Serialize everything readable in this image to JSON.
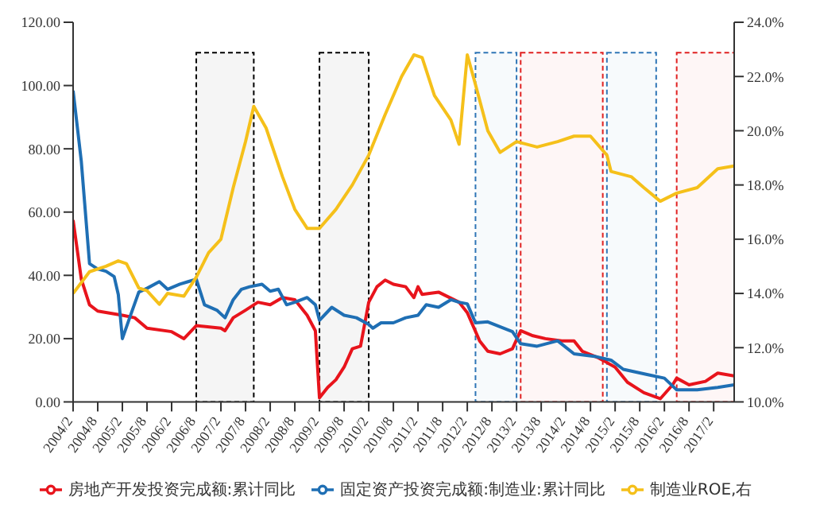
{
  "chart_data": {
    "type": "line",
    "legend": "bottom",
    "marker": "none",
    "line_style": "solid",
    "xlim": [
      "2004-02",
      "2017-07"
    ],
    "xticks": [
      {
        "value": "2004-02",
        "label": "2004/2"
      },
      {
        "value": "2004-08",
        "label": "2004/8"
      },
      {
        "value": "2005-02",
        "label": "2005/2"
      },
      {
        "value": "2005-08",
        "label": "2005/8"
      },
      {
        "value": "2006-02",
        "label": "2006/2"
      },
      {
        "value": "2006-08",
        "label": "2006/8"
      },
      {
        "value": "2007-02",
        "label": "2007/2"
      },
      {
        "value": "2007-08",
        "label": "2007/8"
      },
      {
        "value": "2008-02",
        "label": "2008/2"
      },
      {
        "value": "2008-08",
        "label": "2008/8"
      },
      {
        "value": "2009-02",
        "label": "2009/2"
      },
      {
        "value": "2009-08",
        "label": "2009/8"
      },
      {
        "value": "2010-02",
        "label": "2010/2"
      },
      {
        "value": "2010-08",
        "label": "2010/8"
      },
      {
        "value": "2011-02",
        "label": "2011/2"
      },
      {
        "value": "2011-08",
        "label": "2011/8"
      },
      {
        "value": "2012-02",
        "label": "2012/2"
      },
      {
        "value": "2012-08",
        "label": "2012/8"
      },
      {
        "value": "2013-02",
        "label": "2013/2"
      },
      {
        "value": "2013-08",
        "label": "2013/8"
      },
      {
        "value": "2014-02",
        "label": "2014/2"
      },
      {
        "value": "2014-08",
        "label": "2014/8"
      },
      {
        "value": "2015-02",
        "label": "2015/2"
      },
      {
        "value": "2015-08",
        "label": "2015/8"
      },
      {
        "value": "2016-02",
        "label": "2016/2"
      },
      {
        "value": "2016-08",
        "label": "2016/8"
      },
      {
        "value": "2017-02",
        "label": "2017/2"
      }
    ],
    "ylim": [
      0,
      120
    ],
    "yticks": [
      {
        "value": 0,
        "label": "0.00"
      },
      {
        "value": 20,
        "label": "20.00"
      },
      {
        "value": 40,
        "label": "40.00"
      },
      {
        "value": 60,
        "label": "60.00"
      },
      {
        "value": 80,
        "label": "80.00"
      },
      {
        "value": 100,
        "label": "100.00"
      },
      {
        "value": 120,
        "label": "120.00"
      }
    ],
    "y2lim": [
      10,
      24
    ],
    "y2ticks": [
      {
        "value": 10,
        "label": "10.0%"
      },
      {
        "value": 12,
        "label": "12.0%"
      },
      {
        "value": 14,
        "label": "14.0%"
      },
      {
        "value": 16,
        "label": "16.0%"
      },
      {
        "value": 18,
        "label": "18.0%"
      },
      {
        "value": 20,
        "label": "20.0%"
      },
      {
        "value": 22,
        "label": "22.0%"
      },
      {
        "value": 24,
        "label": "24.0%"
      }
    ],
    "bands": [
      {
        "axis": "x",
        "from": "2006-08",
        "to": "2007-10",
        "color": "#000000"
      },
      {
        "axis": "x",
        "from": "2009-02",
        "to": "2010-02",
        "color": "#000000"
      },
      {
        "axis": "x",
        "from": "2012-04",
        "to": "2013-02",
        "color": "#2e75b6"
      },
      {
        "axis": "x",
        "from": "2013-03",
        "to": "2014-11",
        "color": "#e02020"
      },
      {
        "axis": "x",
        "from": "2014-12",
        "to": "2015-12",
        "color": "#2e75b6"
      },
      {
        "axis": "x",
        "from": "2016-05",
        "to": "2017-07",
        "color": "#e02020"
      }
    ],
    "series": [
      {
        "name": "房地产开发投资完成额:累计同比",
        "color": "#e8141c",
        "x": [
          "2004-02",
          "2004-04",
          "2004-06",
          "2004-08",
          "2005-02",
          "2005-05",
          "2005-08",
          "2006-02",
          "2006-05",
          "2006-08",
          "2007-02",
          "2007-03",
          "2007-05",
          "2007-08",
          "2007-11",
          "2008-02",
          "2008-05",
          "2008-08",
          "2008-11",
          "2009-01",
          "2009-02",
          "2009-04",
          "2009-06",
          "2009-08",
          "2009-10",
          "2009-12",
          "2010-02",
          "2010-04",
          "2010-06",
          "2010-08",
          "2010-11",
          "2011-01",
          "2011-02",
          "2011-03",
          "2011-07",
          "2011-12",
          "2012-02",
          "2012-05",
          "2012-07",
          "2012-10",
          "2013-01",
          "2013-03",
          "2013-06",
          "2013-09",
          "2014-01",
          "2014-04",
          "2014-06",
          "2014-10",
          "2015-02",
          "2015-05",
          "2015-09",
          "2016-01",
          "2016-04",
          "2016-05",
          "2016-08",
          "2016-12",
          "2017-03",
          "2017-07"
        ],
        "values": [
          57.5,
          38.8,
          30.7,
          28.7,
          27.4,
          26.6,
          23.3,
          22.2,
          20,
          24.1,
          23.3,
          22.5,
          26.6,
          29,
          31.5,
          30.7,
          33,
          32.3,
          27.4,
          22.5,
          1.3,
          4.6,
          7,
          11,
          16.8,
          17.6,
          31.5,
          36.4,
          38.5,
          37.2,
          36.4,
          33,
          36.4,
          34,
          34.7,
          31.5,
          28.2,
          19.3,
          16,
          15.2,
          16.8,
          22.5,
          20.9,
          20,
          19.3,
          19.3,
          16,
          13.9,
          11,
          6.2,
          2.9,
          1,
          5.4,
          7.5,
          5.4,
          6.5,
          9.1,
          8.2
        ]
      },
      {
        "name": "固定资产投资完成额:制造业:累计同比",
        "color": "#1f6fb4",
        "x": [
          "2004-02",
          "2004-04",
          "2004-06",
          "2004-08",
          "2004-10",
          "2004-12",
          "2005-01",
          "2005-02",
          "2005-04",
          "2005-06",
          "2005-08",
          "2005-11",
          "2006-01",
          "2006-04",
          "2006-06",
          "2006-08",
          "2006-10",
          "2007-01",
          "2007-03",
          "2007-05",
          "2007-07",
          "2007-09",
          "2007-12",
          "2008-02",
          "2008-04",
          "2008-06",
          "2008-08",
          "2008-11",
          "2009-01",
          "2009-02",
          "2009-05",
          "2009-08",
          "2009-11",
          "2010-02",
          "2010-03",
          "2010-05",
          "2010-08",
          "2010-11",
          "2011-02",
          "2011-04",
          "2011-07",
          "2011-10",
          "2011-12",
          "2012-02",
          "2012-04",
          "2012-07",
          "2013-01",
          "2013-03",
          "2013-07",
          "2013-12",
          "2014-04",
          "2014-09",
          "2015-01",
          "2015-04",
          "2015-10",
          "2016-02",
          "2016-05",
          "2016-10",
          "2017-03",
          "2017-07"
        ],
        "values": [
          98.4,
          76,
          43.7,
          42,
          41.3,
          39.6,
          34,
          20,
          27.4,
          34.7,
          35.9,
          38,
          35.6,
          37.2,
          38,
          38.8,
          30.7,
          29,
          26.6,
          32.3,
          35.6,
          36.4,
          37.2,
          35,
          35.6,
          30.7,
          31.5,
          33,
          30.7,
          25.8,
          29.9,
          27.4,
          26.6,
          24.5,
          23.3,
          25,
          25,
          26.6,
          27.4,
          30.7,
          29.9,
          32.3,
          31.5,
          31,
          25,
          25.3,
          22.2,
          18.4,
          17.6,
          19.3,
          15.2,
          14.4,
          13.2,
          10.3,
          8.6,
          7.5,
          3.8,
          3.8,
          4.6,
          5.4
        ]
      },
      {
        "name": "制造业ROE,右",
        "color": "#f5c01a",
        "axis": "y2",
        "x": [
          "2004-02",
          "2004-06",
          "2004-10",
          "2005-01",
          "2005-03",
          "2005-06",
          "2005-08",
          "2005-11",
          "2006-01",
          "2006-05",
          "2006-08",
          "2006-11",
          "2007-02",
          "2007-05",
          "2007-08",
          "2007-10",
          "2008-01",
          "2008-05",
          "2008-08",
          "2008-11",
          "2009-02",
          "2009-06",
          "2009-10",
          "2010-02",
          "2010-06",
          "2010-10",
          "2011-01",
          "2011-03",
          "2011-06",
          "2011-10",
          "2011-12",
          "2012-02",
          "2012-04",
          "2012-07",
          "2012-10",
          "2013-02",
          "2013-07",
          "2013-12",
          "2014-04",
          "2014-08",
          "2014-12",
          "2015-01",
          "2015-06",
          "2015-09",
          "2016-01",
          "2016-05",
          "2016-10",
          "2017-03",
          "2017-07"
        ],
        "values": [
          14.0,
          14.8,
          15.0,
          15.2,
          15.1,
          14.2,
          14.1,
          13.6,
          14.0,
          13.9,
          14.6,
          15.5,
          16.0,
          17.9,
          19.6,
          20.9,
          20.1,
          18.3,
          17.1,
          16.4,
          16.4,
          17.1,
          18.0,
          19.1,
          20.6,
          22.0,
          22.8,
          22.7,
          21.3,
          20.4,
          19.5,
          22.8,
          21.7,
          20.0,
          19.2,
          19.6,
          19.4,
          19.6,
          19.8,
          19.8,
          19.1,
          18.5,
          18.3,
          17.9,
          17.4,
          17.7,
          17.9,
          18.6,
          18.7
        ]
      }
    ]
  }
}
